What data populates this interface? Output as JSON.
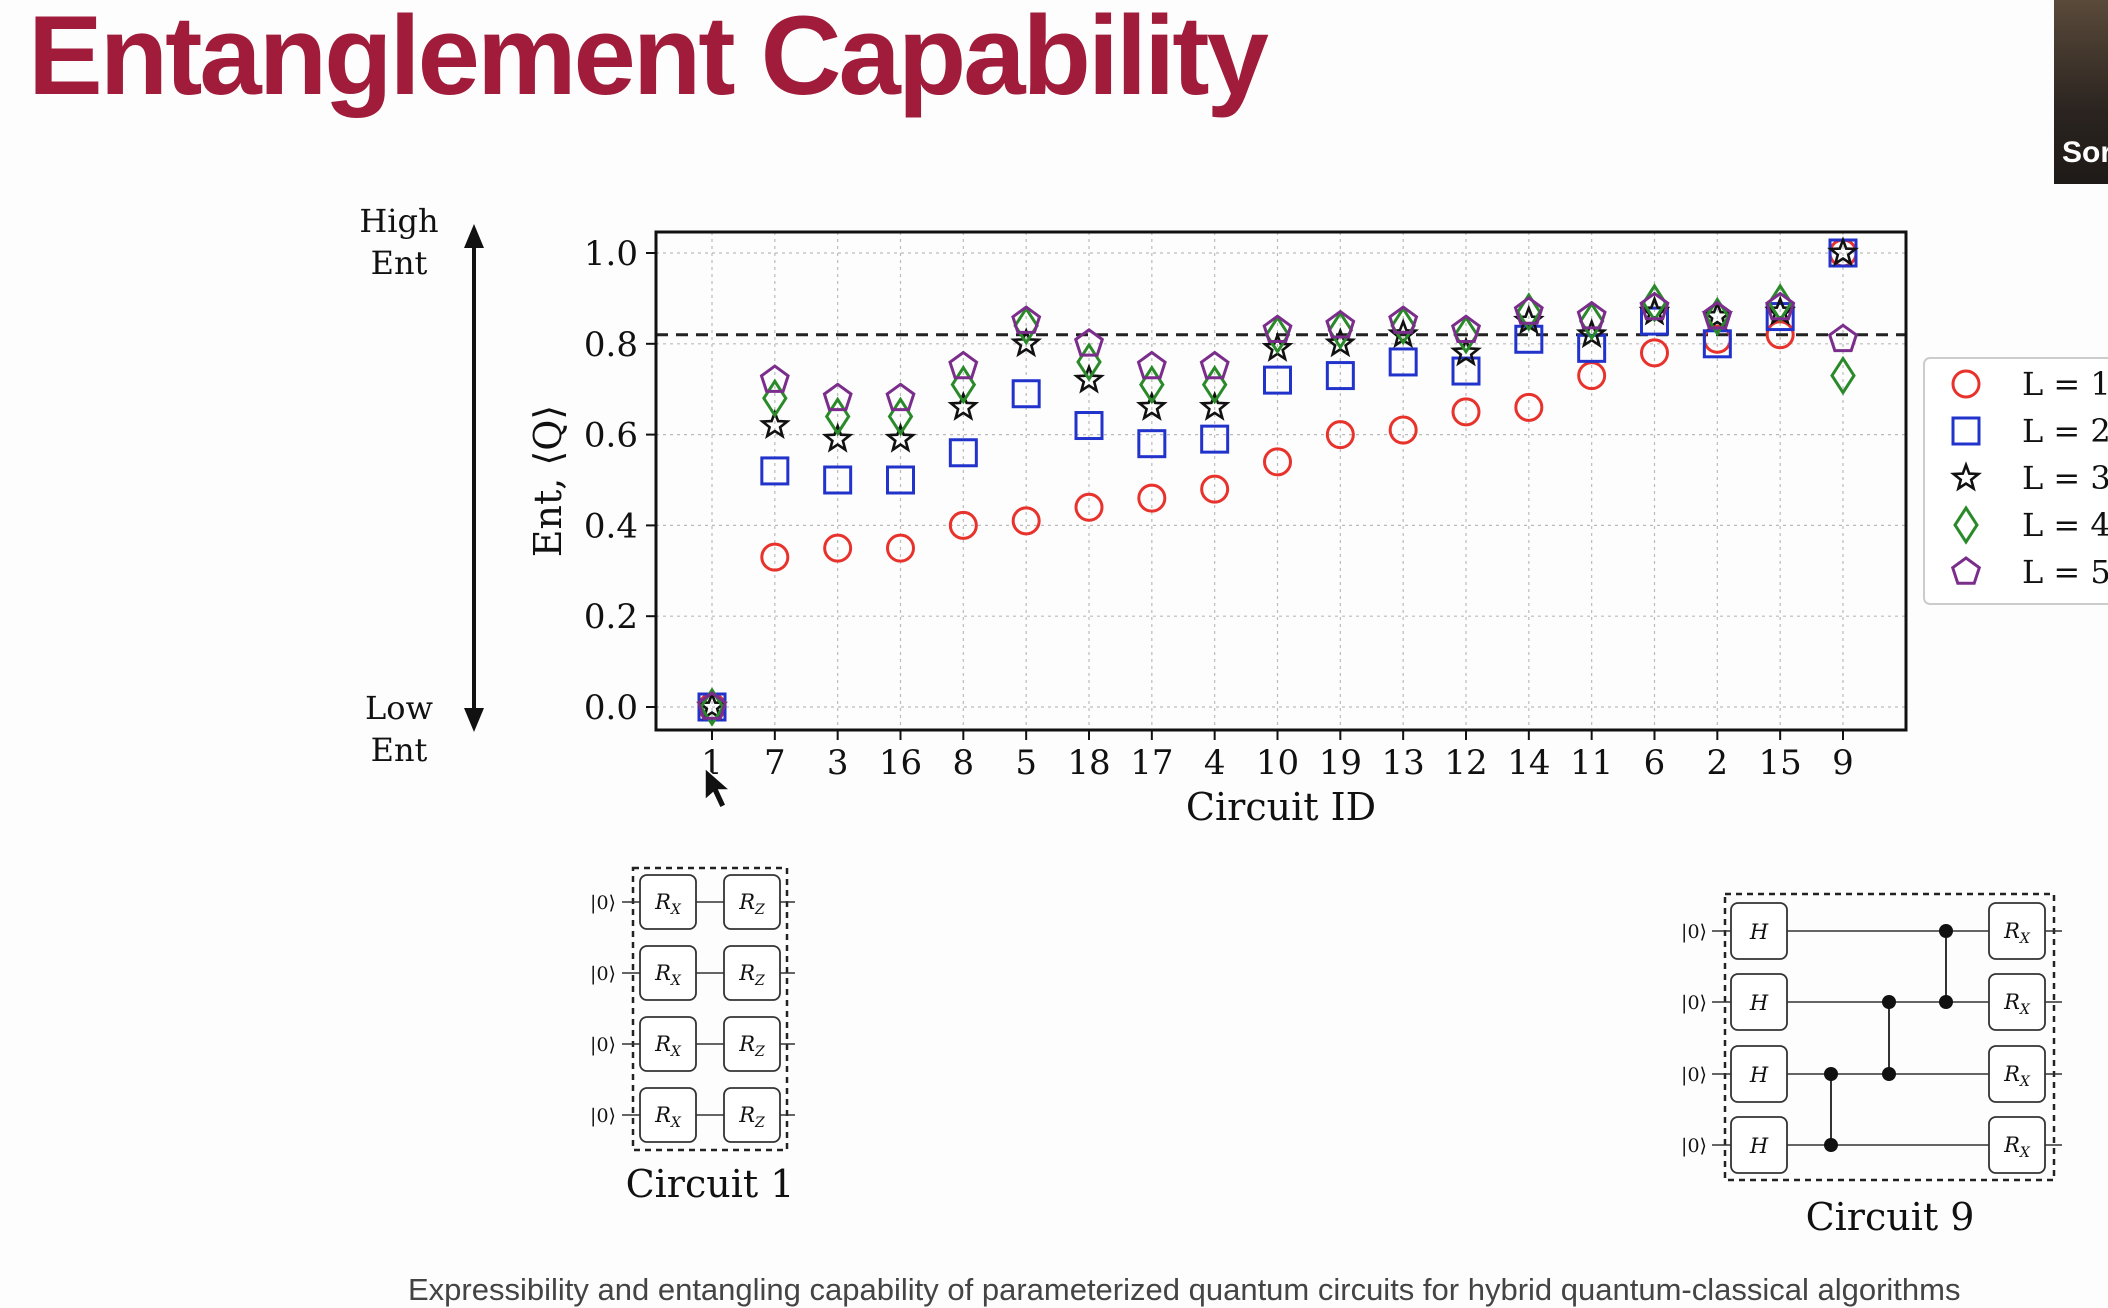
{
  "title": "Entanglement Capability",
  "video_tile": {
    "name": "Sor"
  },
  "caption": "Expressibility and entangling capability of parameterized quantum circuits for hybrid quantum-classical algorithms",
  "side_axis": {
    "top_line1": "High",
    "top_line2": "Ent",
    "bottom_line1": "Low",
    "bottom_line2": "Ent"
  },
  "chart_data": {
    "type": "scatter",
    "xlabel": "Circuit ID",
    "ylabel": "Ent, ⟨Q⟩",
    "ylim": [
      -0.05,
      1.05
    ],
    "yticks": [
      "0.0",
      "0.2",
      "0.4",
      "0.6",
      "0.8",
      "1.0"
    ],
    "categories": [
      "1",
      "7",
      "3",
      "16",
      "8",
      "5",
      "18",
      "17",
      "4",
      "10",
      "19",
      "13",
      "12",
      "14",
      "11",
      "6",
      "2",
      "15",
      "9"
    ],
    "reference_line": 0.82,
    "grid": true,
    "legend_position": "right",
    "series": [
      {
        "name": "L = 1",
        "marker": "circle",
        "color": "#e8322c",
        "values": [
          0.0,
          0.33,
          0.35,
          0.35,
          0.4,
          0.41,
          0.44,
          0.46,
          0.48,
          0.54,
          0.6,
          0.61,
          0.65,
          0.66,
          0.73,
          0.78,
          0.81,
          0.82,
          1.0
        ]
      },
      {
        "name": "L = 2",
        "marker": "square",
        "color": "#2233cc",
        "values": [
          0.0,
          0.52,
          0.5,
          0.5,
          0.56,
          0.69,
          0.62,
          0.58,
          0.59,
          0.72,
          0.73,
          0.76,
          0.74,
          0.81,
          0.79,
          0.85,
          0.8,
          0.86,
          1.0
        ]
      },
      {
        "name": "L = 3",
        "marker": "star",
        "color": "#111111",
        "values": [
          0.0,
          0.62,
          0.59,
          0.59,
          0.66,
          0.8,
          0.72,
          0.66,
          0.66,
          0.79,
          0.8,
          0.82,
          0.78,
          0.85,
          0.82,
          0.87,
          0.86,
          0.87,
          1.0
        ]
      },
      {
        "name": "L = 4",
        "marker": "diamond",
        "color": "#2a8a2a",
        "values": [
          0.0,
          0.68,
          0.64,
          0.64,
          0.71,
          0.84,
          0.76,
          0.71,
          0.71,
          0.82,
          0.83,
          0.84,
          0.82,
          0.87,
          0.85,
          0.89,
          0.86,
          0.89,
          0.73
        ]
      },
      {
        "name": "L = 5",
        "marker": "pentagon",
        "color": "#7b2d8b",
        "values": [
          0.0,
          0.72,
          0.68,
          0.68,
          0.75,
          0.85,
          0.8,
          0.75,
          0.75,
          0.83,
          0.84,
          0.85,
          0.83,
          0.87,
          0.86,
          0.88,
          0.86,
          0.88,
          0.81
        ]
      }
    ]
  },
  "circuit1": {
    "title": "Circuit 1",
    "ket": "|0⟩",
    "gates": [
      "R",
      "X",
      "R",
      "Z"
    ]
  },
  "circuit9": {
    "title": "Circuit 9",
    "ket": "|0⟩",
    "gates": [
      "H",
      "R",
      "X"
    ]
  }
}
